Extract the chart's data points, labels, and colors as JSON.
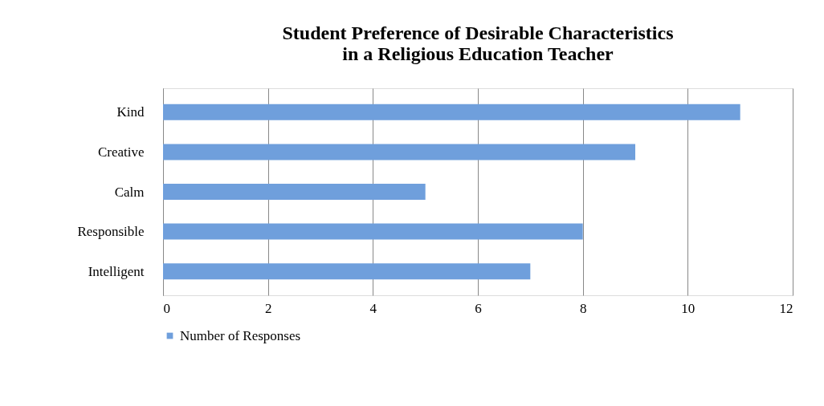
{
  "chart_data": {
    "type": "bar",
    "orientation": "horizontal",
    "title": "Student Preference of Desirable Characteristics\nin a Religious Education Teacher",
    "categories": [
      "Kind",
      "Creative",
      "Calm",
      "Responsible",
      "Intelligent"
    ],
    "series": [
      {
        "name": "Number of Responses",
        "color": "#6f9fdc",
        "values": [
          11,
          9,
          5,
          8,
          7
        ]
      }
    ],
    "xlim": [
      0,
      12
    ],
    "xticks": [
      0,
      2,
      4,
      6,
      8,
      10,
      12
    ],
    "grid": "x",
    "legend": "bottom"
  }
}
